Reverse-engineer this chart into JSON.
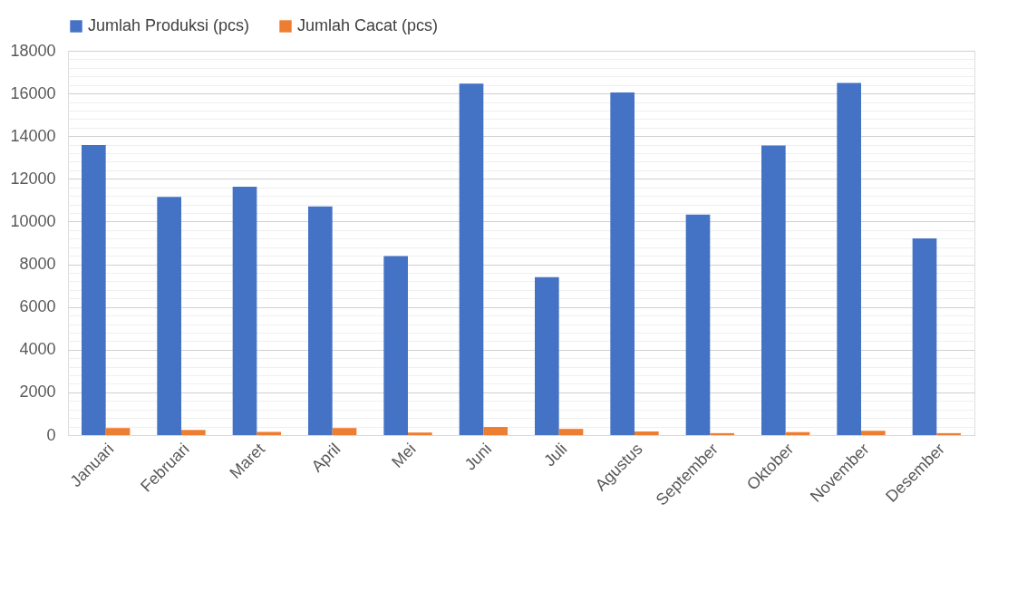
{
  "chart_data": {
    "type": "bar",
    "categories": [
      "Januari",
      "Februari",
      "Maret",
      "April",
      "Mei",
      "Juni",
      "Juli",
      "Agustus",
      "September",
      "Oktober",
      "November",
      "Desember"
    ],
    "series": [
      {
        "name": "Jumlah Produksi (pcs)",
        "color": "#4472c4",
        "values": [
          13580,
          11150,
          11630,
          10710,
          8380,
          16460,
          7400,
          16050,
          10330,
          13560,
          16490,
          9210
        ]
      },
      {
        "name": "Jumlah Cacat (pcs)",
        "color": "#ed7d31",
        "values": [
          330,
          240,
          150,
          330,
          120,
          380,
          290,
          170,
          90,
          140,
          200,
          90
        ]
      }
    ],
    "ylim": [
      0,
      18000
    ],
    "yticks": [
      0,
      {
        "value": 400,
        "label": null
      },
      {
        "value": 800,
        "label": null
      },
      {
        "value": 1200,
        "label": null
      },
      {
        "value": 1600,
        "label": null
      },
      2000,
      {
        "value": 2400,
        "label": null
      },
      {
        "value": 2800,
        "label": null
      },
      {
        "value": 3200,
        "label": null
      },
      {
        "value": 3600,
        "label": null
      },
      4000,
      {
        "value": 4400,
        "label": null
      },
      {
        "value": 4800,
        "label": null
      },
      {
        "value": 5200,
        "label": null
      },
      {
        "value": 5600,
        "label": null
      },
      6000,
      {
        "value": 6400,
        "label": null
      },
      {
        "value": 6800,
        "label": null
      },
      {
        "value": 7200,
        "label": null
      },
      {
        "value": 7600,
        "label": null
      },
      8000,
      {
        "value": 8400,
        "label": null
      },
      {
        "value": 8800,
        "label": null
      },
      {
        "value": 9200,
        "label": null
      },
      {
        "value": 9600,
        "label": null
      },
      10000,
      {
        "value": 10400,
        "label": null
      },
      {
        "value": 10800,
        "label": null
      },
      {
        "value": 11200,
        "label": null
      },
      {
        "value": 11600,
        "label": null
      },
      12000,
      {
        "value": 12400,
        "label": null
      },
      {
        "value": 12800,
        "label": null
      },
      {
        "value": 13200,
        "label": null
      },
      {
        "value": 13600,
        "label": null
      },
      14000,
      {
        "value": 14400,
        "label": null
      },
      {
        "value": 14800,
        "label": null
      },
      {
        "value": 15200,
        "label": null
      },
      {
        "value": 15600,
        "label": null
      },
      16000,
      {
        "value": 16400,
        "label": null
      },
      {
        "value": 16800,
        "label": null
      },
      {
        "value": 17200,
        "label": null
      },
      {
        "value": 17600,
        "label": null
      },
      18000
    ],
    "grid": "y",
    "legend": "top"
  }
}
